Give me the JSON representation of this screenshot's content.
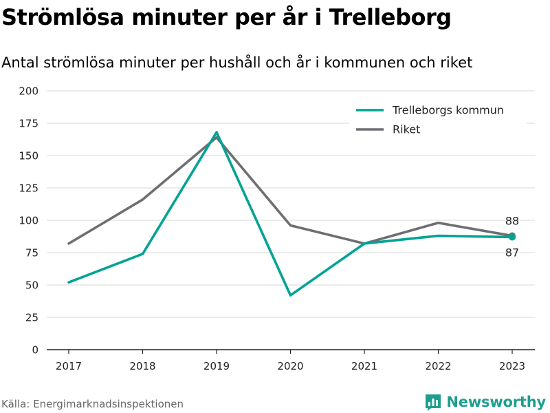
{
  "title": "Strömlösa minuter per år i Trelleborg",
  "subtitle": "Antal strömlösa minuter per hushåll och år i kommunen och riket",
  "source": "Källa: Energimarknadsinspektionen",
  "brand": {
    "name": "Newsworthy",
    "icon": "bar-chart-logo-icon",
    "color": "#1f9e8f"
  },
  "chart_data": {
    "type": "line",
    "title": "Strömlösa minuter per år i Trelleborg",
    "subtitle": "Antal strömlösa minuter per hushåll och år i kommunen och riket",
    "xlabel": "",
    "ylabel": "",
    "categories": [
      "2017",
      "2018",
      "2019",
      "2020",
      "2021",
      "2022",
      "2023"
    ],
    "ylim": [
      0,
      200
    ],
    "yticks": [
      0,
      25,
      50,
      75,
      100,
      125,
      150,
      175,
      200
    ],
    "grid": true,
    "legend_position": "top-right",
    "series": [
      {
        "name": "Trelleborgs kommun",
        "color": "#00a393",
        "values": [
          52,
          74,
          168,
          42,
          82,
          88,
          87
        ],
        "end_label": "87"
      },
      {
        "name": "Riket",
        "color": "#6e6e73",
        "values": [
          82,
          116,
          164,
          96,
          82,
          98,
          88
        ],
        "end_label": "88"
      }
    ]
  }
}
